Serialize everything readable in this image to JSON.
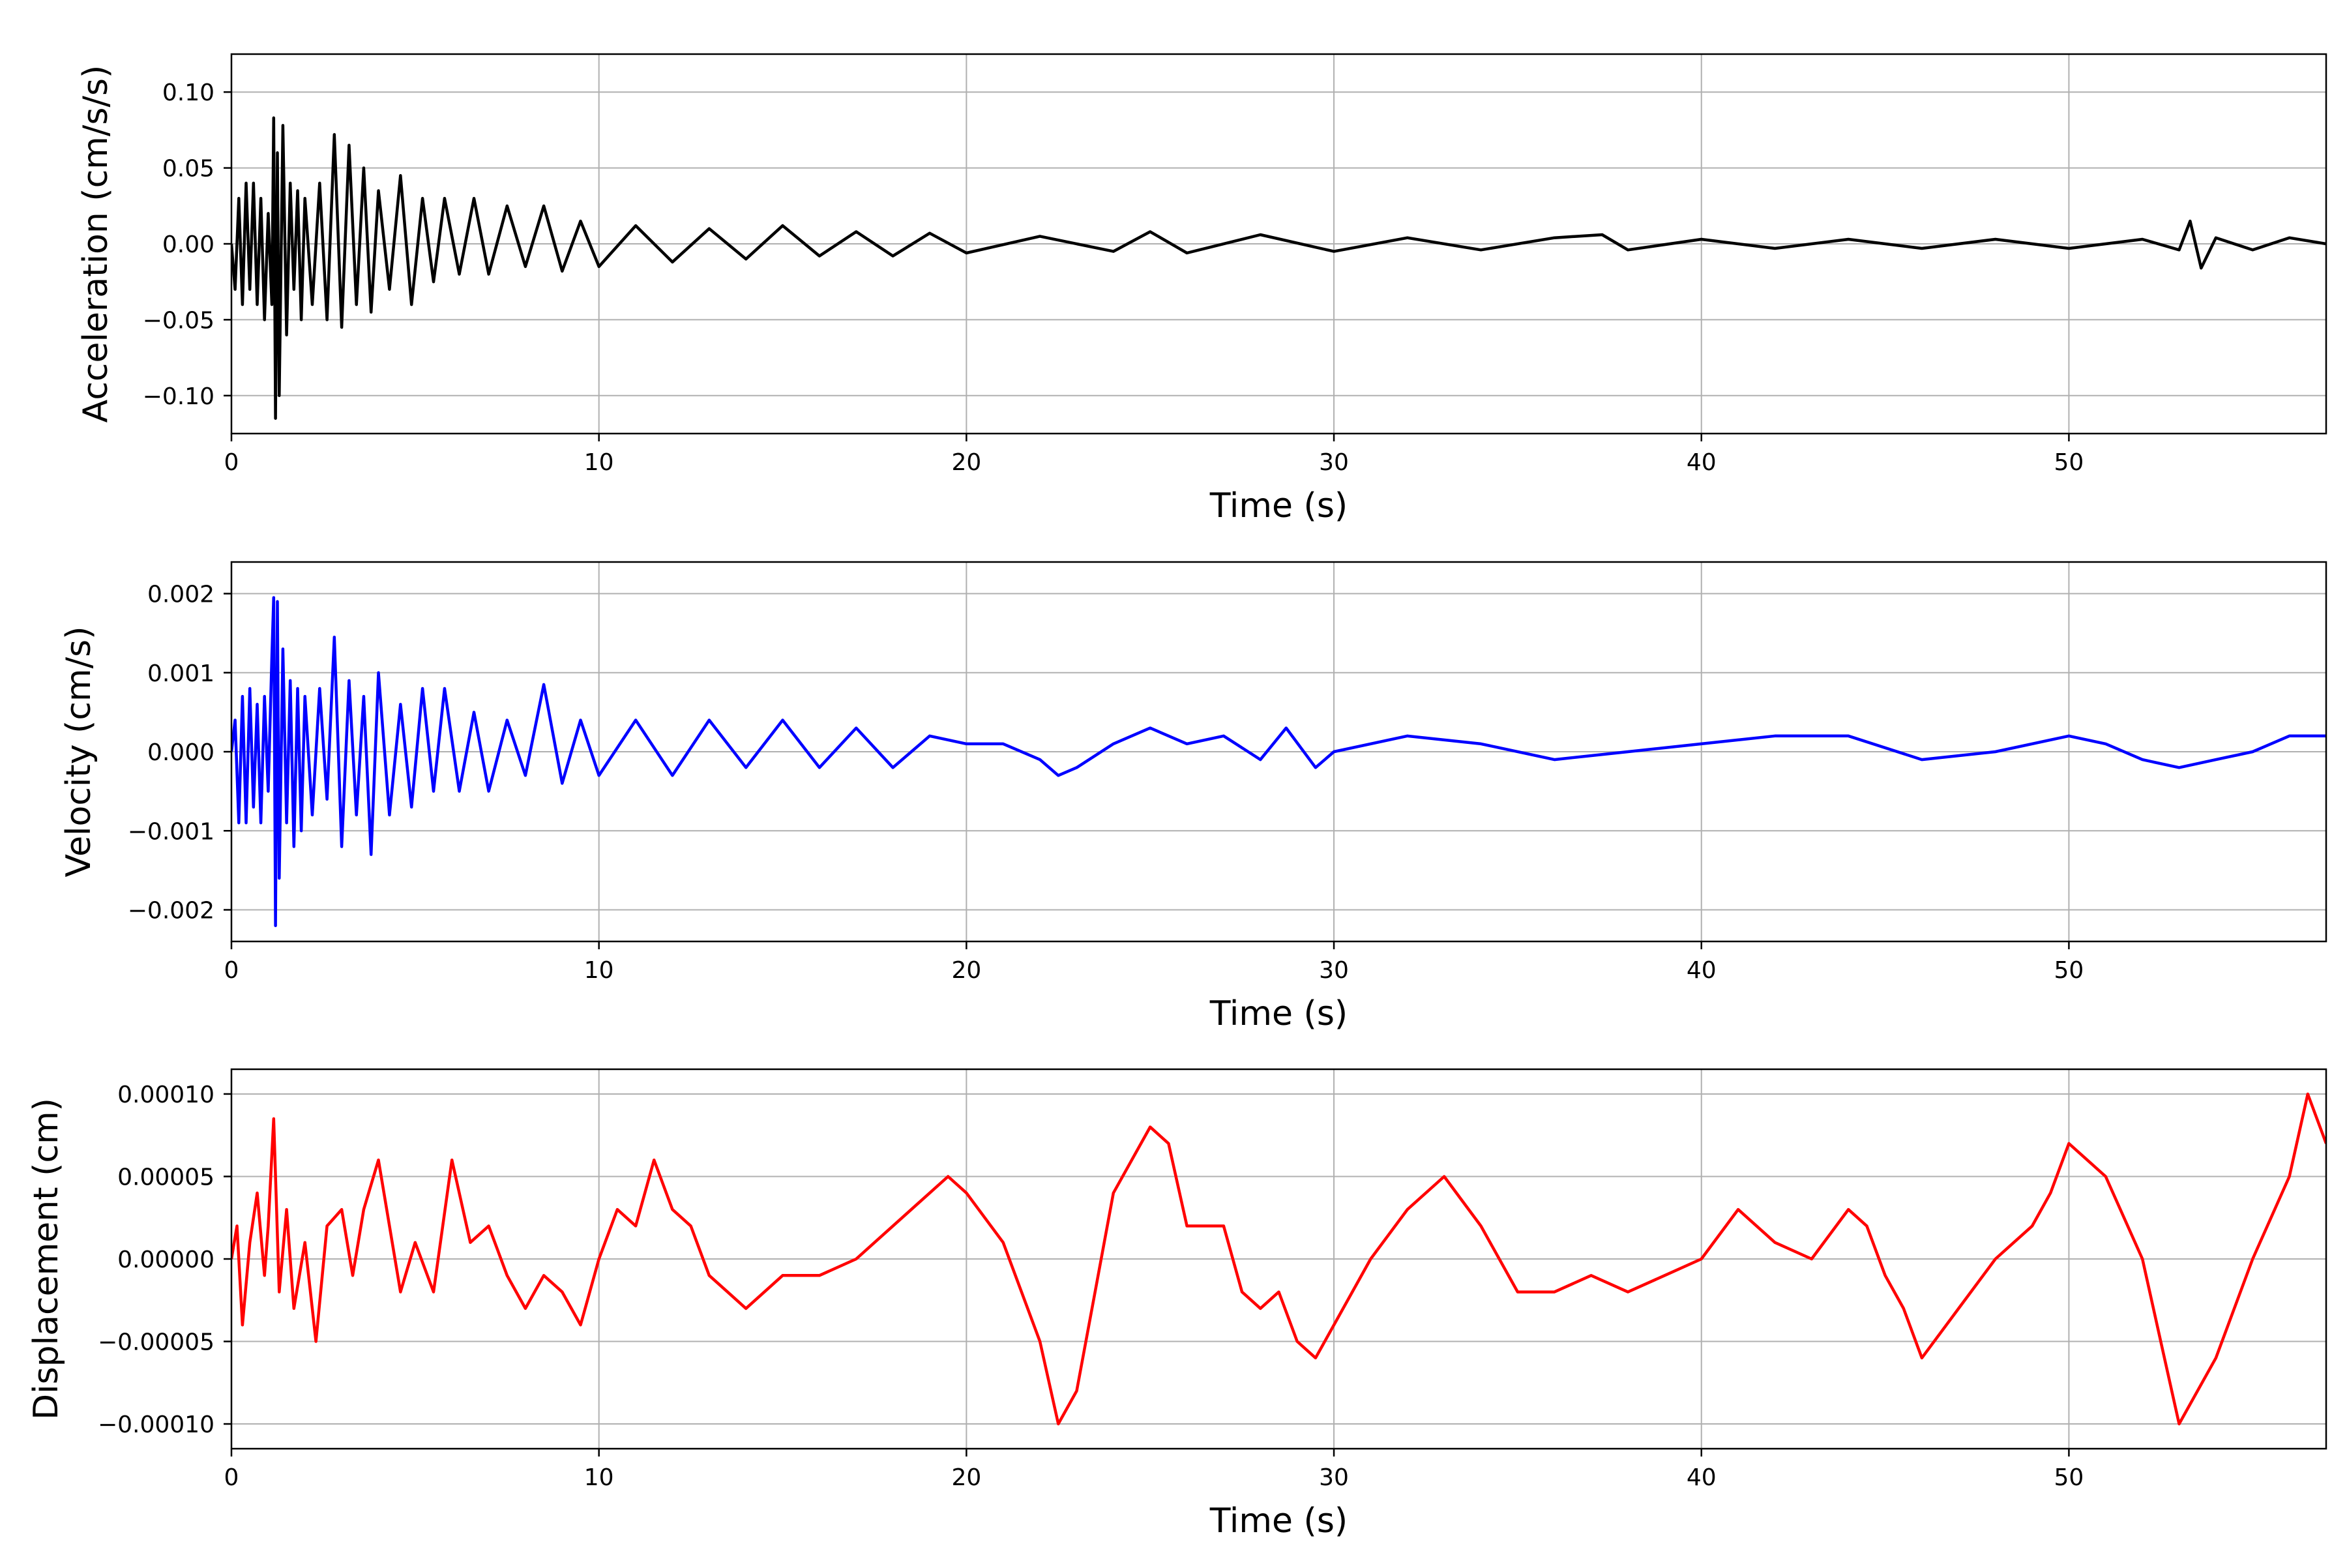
{
  "chart_data": [
    {
      "type": "line",
      "xlabel": "Time (s)",
      "ylabel": "Acceleration (cm/s/s)",
      "xlim": [
        0,
        57
      ],
      "ylim": [
        -0.125,
        0.125
      ],
      "xticks": [
        0,
        10,
        20,
        30,
        40,
        50
      ],
      "xtick_labels": [
        "0",
        "10",
        "20",
        "30",
        "40",
        "50"
      ],
      "yticks": [
        0.1,
        0.05,
        0.0,
        -0.05,
        -0.1
      ],
      "ytick_labels": [
        "0.10",
        "0.05",
        "0.00",
        "−0.05",
        "−0.10"
      ],
      "grid": true,
      "color": "#000000",
      "x": [
        0.0,
        0.1,
        0.2,
        0.3,
        0.4,
        0.5,
        0.6,
        0.7,
        0.8,
        0.9,
        1.0,
        1.1,
        1.15,
        1.2,
        1.25,
        1.3,
        1.4,
        1.5,
        1.6,
        1.7,
        1.8,
        1.9,
        2.0,
        2.2,
        2.4,
        2.6,
        2.8,
        3.0,
        3.2,
        3.4,
        3.6,
        3.8,
        4.0,
        4.3,
        4.6,
        4.9,
        5.2,
        5.5,
        5.8,
        6.2,
        6.6,
        7.0,
        7.5,
        8.0,
        8.5,
        9.0,
        9.5,
        10.0,
        11,
        12,
        13,
        14,
        15,
        16,
        17,
        18,
        19,
        20,
        22,
        24,
        25,
        26,
        28,
        30,
        32,
        34,
        36,
        37.3,
        38,
        40,
        42,
        44,
        46,
        48,
        50,
        52,
        53.0,
        53.3,
        53.6,
        54,
        55,
        56,
        57
      ],
      "values": [
        0.0,
        -0.03,
        0.03,
        -0.04,
        0.04,
        -0.03,
        0.04,
        -0.04,
        0.03,
        -0.05,
        0.02,
        -0.04,
        0.083,
        -0.115,
        0.06,
        -0.1,
        0.078,
        -0.06,
        0.04,
        -0.03,
        0.035,
        -0.05,
        0.03,
        -0.04,
        0.04,
        -0.05,
        0.072,
        -0.055,
        0.065,
        -0.04,
        0.05,
        -0.045,
        0.035,
        -0.03,
        0.045,
        -0.04,
        0.03,
        -0.025,
        0.03,
        -0.02,
        0.03,
        -0.02,
        0.025,
        -0.015,
        0.025,
        -0.018,
        0.015,
        -0.015,
        0.012,
        -0.012,
        0.01,
        -0.01,
        0.012,
        -0.008,
        0.008,
        -0.008,
        0.007,
        -0.006,
        0.005,
        -0.005,
        0.008,
        -0.006,
        0.006,
        -0.005,
        0.004,
        -0.004,
        0.004,
        0.006,
        -0.004,
        0.003,
        -0.003,
        0.003,
        -0.003,
        0.003,
        -0.003,
        0.003,
        -0.004,
        0.015,
        -0.016,
        0.004,
        -0.004,
        0.004,
        0.0
      ]
    },
    {
      "type": "line",
      "xlabel": "Time (s)",
      "ylabel": "Velocity (cm/s)",
      "xlim": [
        0,
        57
      ],
      "ylim": [
        -0.0024,
        0.0024
      ],
      "xticks": [
        0,
        10,
        20,
        30,
        40,
        50
      ],
      "xtick_labels": [
        "0",
        "10",
        "20",
        "30",
        "40",
        "50"
      ],
      "yticks": [
        0.002,
        0.001,
        0.0,
        -0.001,
        -0.002
      ],
      "ytick_labels": [
        "0.002",
        "0.001",
        "0.000",
        "−0.001",
        "−0.002"
      ],
      "grid": true,
      "color": "#0000ff",
      "x": [
        0.0,
        0.1,
        0.2,
        0.3,
        0.4,
        0.5,
        0.6,
        0.7,
        0.8,
        0.9,
        1.0,
        1.1,
        1.15,
        1.2,
        1.25,
        1.3,
        1.4,
        1.5,
        1.6,
        1.7,
        1.8,
        1.9,
        2.0,
        2.2,
        2.4,
        2.6,
        2.8,
        3.0,
        3.2,
        3.4,
        3.6,
        3.8,
        4.0,
        4.3,
        4.6,
        4.9,
        5.2,
        5.5,
        5.8,
        6.2,
        6.6,
        7.0,
        7.5,
        8.0,
        8.5,
        9.0,
        9.5,
        10.0,
        11,
        12,
        13,
        14,
        15,
        16,
        17,
        18,
        19,
        20,
        21,
        22,
        22.5,
        23,
        24,
        25,
        26,
        27,
        28,
        28.7,
        29.5,
        30,
        32,
        34,
        36,
        38,
        40,
        42,
        44,
        46,
        48,
        50,
        51,
        52,
        53,
        54,
        55,
        56,
        57
      ],
      "values": [
        0.0,
        0.0004,
        -0.0009,
        0.0007,
        -0.0009,
        0.0008,
        -0.0007,
        0.0006,
        -0.0009,
        0.0007,
        -0.0005,
        0.0012,
        0.00195,
        -0.0022,
        0.0019,
        -0.0016,
        0.0013,
        -0.0009,
        0.0009,
        -0.0012,
        0.0008,
        -0.001,
        0.0007,
        -0.0008,
        0.0008,
        -0.0006,
        0.00145,
        -0.0012,
        0.0009,
        -0.0008,
        0.0007,
        -0.0013,
        0.001,
        -0.0008,
        0.0006,
        -0.0007,
        0.0008,
        -0.0005,
        0.0008,
        -0.0005,
        0.0005,
        -0.0005,
        0.0004,
        -0.0003,
        0.00085,
        -0.0004,
        0.0004,
        -0.0003,
        0.0004,
        -0.0003,
        0.0004,
        -0.0002,
        0.0004,
        -0.0002,
        0.0003,
        -0.0002,
        0.0002,
        0.0001,
        0.0001,
        -0.0001,
        -0.0003,
        -0.0002,
        0.0001,
        0.0003,
        0.0001,
        0.0002,
        -0.0001,
        0.0003,
        -0.0002,
        0.0,
        0.0002,
        0.0001,
        -0.0001,
        0.0,
        0.0001,
        0.0002,
        0.0002,
        -0.0001,
        0.0,
        0.0002,
        0.0001,
        -0.0001,
        -0.0002,
        -0.0001,
        0.0,
        0.0002,
        0.0002
      ]
    },
    {
      "type": "line",
      "xlabel": "Time (s)",
      "ylabel": "Displacement (cm)",
      "xlim": [
        0,
        57
      ],
      "ylim": [
        -0.000115,
        0.000115
      ],
      "xticks": [
        0,
        10,
        20,
        30,
        40,
        50
      ],
      "xtick_labels": [
        "0",
        "10",
        "20",
        "30",
        "40",
        "50"
      ],
      "yticks": [
        0.0001,
        5e-05,
        0.0,
        -5e-05,
        -0.0001
      ],
      "ytick_labels": [
        "0.00010",
        "0.00005",
        "0.00000",
        "−0.00005",
        "−0.00010"
      ],
      "grid": true,
      "color": "#ff0000",
      "x": [
        0.0,
        0.15,
        0.3,
        0.5,
        0.7,
        0.9,
        1.0,
        1.15,
        1.3,
        1.5,
        1.7,
        2.0,
        2.3,
        2.6,
        3.0,
        3.3,
        3.6,
        4.0,
        4.3,
        4.6,
        5.0,
        5.5,
        6.0,
        6.5,
        7.0,
        7.5,
        8.0,
        8.5,
        9.0,
        9.5,
        10.0,
        10.5,
        11.0,
        11.5,
        12.0,
        12.5,
        13.0,
        13.5,
        14.0,
        15.0,
        16.0,
        17.0,
        18.0,
        19.0,
        19.5,
        20.0,
        21.0,
        22.0,
        22.5,
        23.0,
        23.5,
        24.0,
        25.0,
        25.5,
        26.0,
        27.0,
        27.5,
        28.0,
        28.5,
        29.0,
        29.5,
        30.0,
        31.0,
        32.0,
        33.0,
        34.0,
        35.0,
        36.0,
        37.0,
        38.0,
        39.0,
        40.0,
        41.0,
        42.0,
        43.0,
        44.0,
        44.5,
        45.0,
        45.5,
        46.0,
        47.0,
        48.0,
        49.0,
        49.5,
        50.0,
        51.0,
        52.0,
        52.5,
        53.0,
        54.0,
        55.0,
        56.0,
        56.5,
        57.0
      ],
      "values": [
        0.0,
        2e-05,
        -4e-05,
        1e-05,
        4e-05,
        -1e-05,
        2e-05,
        8.5e-05,
        -2e-05,
        3e-05,
        -3e-05,
        1e-05,
        -5e-05,
        2e-05,
        3e-05,
        -1e-05,
        3e-05,
        6e-05,
        2e-05,
        -2e-05,
        1e-05,
        -2e-05,
        6e-05,
        1e-05,
        2e-05,
        -1e-05,
        -3e-05,
        -1e-05,
        -2e-05,
        -4e-05,
        0.0,
        3e-05,
        2e-05,
        6e-05,
        3e-05,
        2e-05,
        -1e-05,
        -2e-05,
        -3e-05,
        -1e-05,
        -1e-05,
        0.0,
        2e-05,
        4e-05,
        5e-05,
        4e-05,
        1e-05,
        -5e-05,
        -0.0001,
        -8e-05,
        -2e-05,
        4e-05,
        8e-05,
        7e-05,
        2e-05,
        2e-05,
        -2e-05,
        -3e-05,
        -2e-05,
        -5e-05,
        -6e-05,
        -4e-05,
        0.0,
        3e-05,
        5e-05,
        2e-05,
        -2e-05,
        -2e-05,
        -1e-05,
        -2e-05,
        -1e-05,
        0.0,
        3e-05,
        1e-05,
        0.0,
        3e-05,
        2e-05,
        -1e-05,
        -3e-05,
        -6e-05,
        -3e-05,
        0.0,
        2e-05,
        4e-05,
        7e-05,
        5e-05,
        0.0,
        -5e-05,
        -0.0001,
        -6e-05,
        0.0,
        5e-05,
        0.0001,
        7e-05
      ]
    }
  ]
}
